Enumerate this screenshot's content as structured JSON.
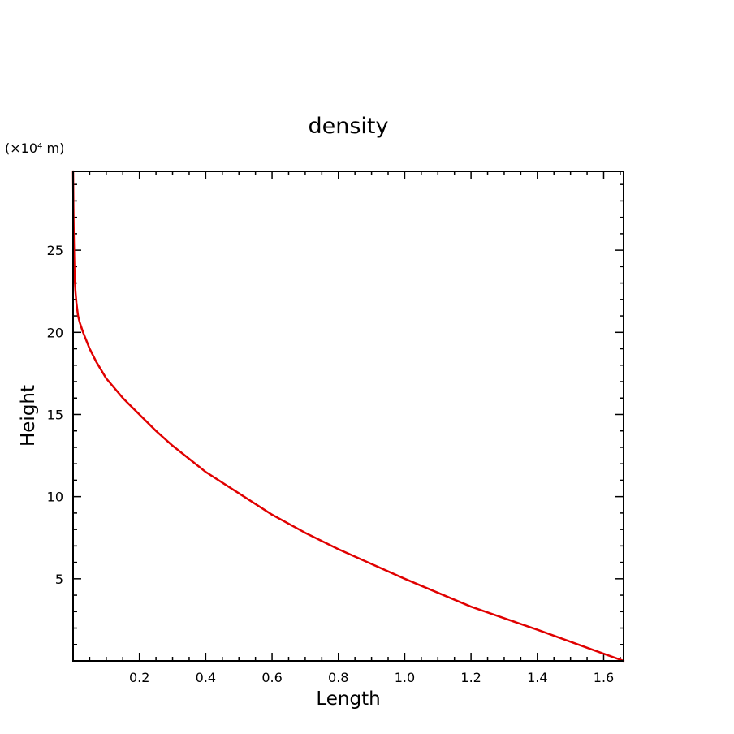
{
  "chart_data": {
    "type": "line",
    "title": "density",
    "xlabel": "Length",
    "ylabel": "Height",
    "y_unit_label": "(×10⁴ m)",
    "xlim": [
      0.0,
      1.66
    ],
    "ylim": [
      0.0,
      29.8
    ],
    "x_ticks": [
      0.2,
      0.4,
      0.6,
      0.8,
      1.0,
      1.2,
      1.4,
      1.6
    ],
    "x_tick_labels": [
      "0.2",
      "0.4",
      "0.6",
      "0.8",
      "1.0",
      "1.2",
      "1.4",
      "1.6"
    ],
    "y_ticks": [
      5,
      10,
      15,
      20,
      25
    ],
    "y_tick_labels": [
      "5",
      "10",
      "15",
      "20",
      "25"
    ],
    "grid": false,
    "line_color": "#e00000",
    "series": [
      {
        "x": [
          1.66,
          1.55,
          1.4,
          1.2,
          1.0,
          0.9,
          0.8,
          0.7,
          0.6,
          0.5,
          0.4,
          0.35,
          0.3,
          0.25,
          0.2,
          0.15,
          0.1,
          0.07,
          0.05,
          0.03,
          0.02,
          0.015,
          0.01,
          0.007,
          0.005,
          0.004,
          0.003,
          0.002,
          0.001,
          0.0
        ],
        "y": [
          0.0,
          0.8,
          1.9,
          3.3,
          5.0,
          5.9,
          6.8,
          7.8,
          8.9,
          10.2,
          11.5,
          12.3,
          13.1,
          14.0,
          15.0,
          16.0,
          17.2,
          18.2,
          19.0,
          20.0,
          20.6,
          21.0,
          21.8,
          22.5,
          23.3,
          24.0,
          25.0,
          26.0,
          27.5,
          29.8
        ]
      }
    ]
  }
}
